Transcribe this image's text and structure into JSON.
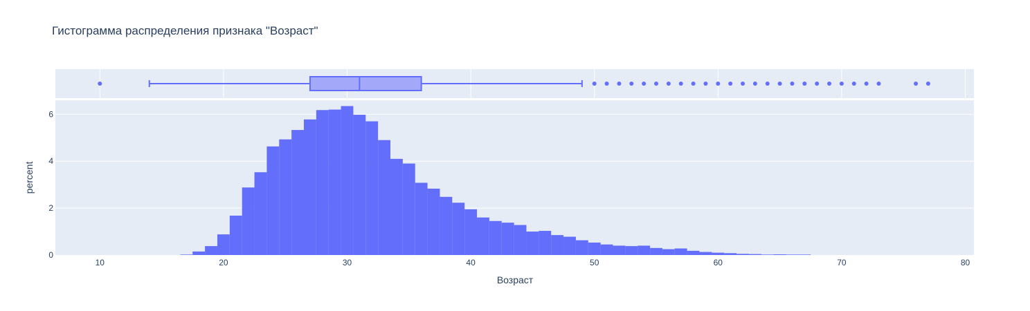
{
  "chart_data": {
    "type": "histogram",
    "title": "Гистограмма распределения признака \"Возраст\"",
    "xlabel": "Возраст",
    "ylabel": "percent",
    "xlim": [
      6.4,
      80.7
    ],
    "ylim": [
      0,
      6.6
    ],
    "x_ticks": [
      10,
      20,
      30,
      40,
      50,
      60,
      70,
      80
    ],
    "y_ticks": [
      0,
      2,
      4,
      6
    ],
    "grid": true,
    "colors": {
      "bar": "#636efa",
      "box_fill": "#a3a8f8",
      "box_line": "#636efa",
      "panel_bg": "#e5ecf6",
      "grid": "#ffffff",
      "text": "#2a3f5f"
    },
    "histogram": {
      "bin_start": 16.5,
      "bin_width": 1,
      "values": [
        0.02,
        0.15,
        0.38,
        0.88,
        1.68,
        2.88,
        3.53,
        4.63,
        4.93,
        5.33,
        5.78,
        6.18,
        6.2,
        6.35,
        5.98,
        5.7,
        4.9,
        4.1,
        3.9,
        3.08,
        2.83,
        2.48,
        2.23,
        1.95,
        1.6,
        1.45,
        1.38,
        1.28,
        1.0,
        1.03,
        0.85,
        0.78,
        0.63,
        0.53,
        0.45,
        0.4,
        0.38,
        0.4,
        0.3,
        0.25,
        0.28,
        0.18,
        0.13,
        0.1,
        0.08,
        0.05,
        0.04,
        0.02,
        0.03,
        0.02,
        0.02
      ]
    },
    "box": {
      "lower_whisker": 14,
      "q1": 27,
      "median": 31,
      "q3": 36,
      "upper_whisker": 49,
      "outliers": [
        10,
        50,
        51,
        52,
        53,
        54,
        55,
        56,
        57,
        58,
        59,
        60,
        61,
        62,
        63,
        64,
        65,
        66,
        67,
        68,
        69,
        70,
        71,
        72,
        73,
        76,
        77
      ]
    }
  }
}
